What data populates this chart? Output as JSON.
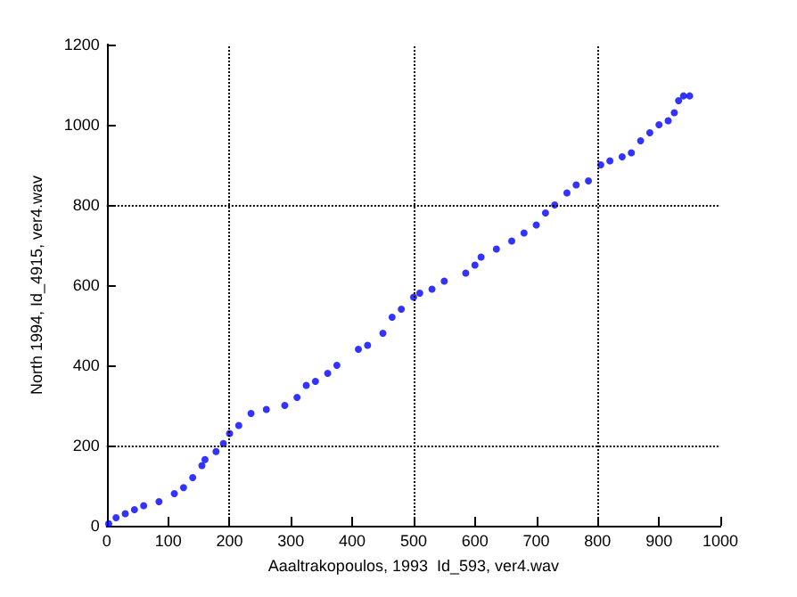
{
  "chart_data": {
    "type": "scatter",
    "xlabel": "Aaaltrakopoulos, 1993  Id_593, ver4.wav",
    "ylabel": "North 1994, Id_4915, ver4.wav",
    "x": [
      3,
      15,
      30,
      45,
      60,
      85,
      110,
      125,
      140,
      155,
      160,
      178,
      190,
      200,
      215,
      235,
      260,
      290,
      310,
      325,
      340,
      360,
      375,
      410,
      425,
      450,
      465,
      480,
      500,
      510,
      530,
      550,
      585,
      600,
      610,
      635,
      660,
      680,
      700,
      715,
      730,
      750,
      765,
      785,
      805,
      820,
      840,
      855,
      870,
      885,
      900,
      915,
      925,
      932,
      940,
      950
    ],
    "series": [
      {
        "color": "#0000ff",
        "values": [
          5,
          20,
          30,
          40,
          50,
          60,
          80,
          95,
          120,
          150,
          165,
          185,
          205,
          230,
          250,
          280,
          290,
          300,
          320,
          350,
          360,
          380,
          400,
          440,
          450,
          480,
          520,
          540,
          570,
          580,
          590,
          610,
          630,
          650,
          670,
          690,
          710,
          730,
          750,
          780,
          800,
          830,
          850,
          860,
          900,
          910,
          920,
          930,
          960,
          980,
          1000,
          1010,
          1030,
          1060,
          1072,
          1072
        ]
      }
    ],
    "xlim": [
      0,
      1000
    ],
    "ylim": [
      0,
      1200
    ],
    "xticks": [
      0,
      100,
      200,
      300,
      400,
      500,
      600,
      700,
      800,
      900,
      1000
    ],
    "yticks": [
      0,
      200,
      400,
      600,
      800,
      1000,
      1200
    ],
    "ref_lines": [
      {
        "axis": "x",
        "value": 200,
        "line_style": "dotted"
      },
      {
        "axis": "x",
        "value": 500,
        "line_style": "dotted"
      },
      {
        "axis": "x",
        "value": 800,
        "line_style": "dotted"
      },
      {
        "axis": "y",
        "value": 200,
        "line_style": "dotted"
      },
      {
        "axis": "y",
        "value": 800,
        "line_style": "dotted"
      }
    ],
    "marker": "circle",
    "grid": false
  }
}
